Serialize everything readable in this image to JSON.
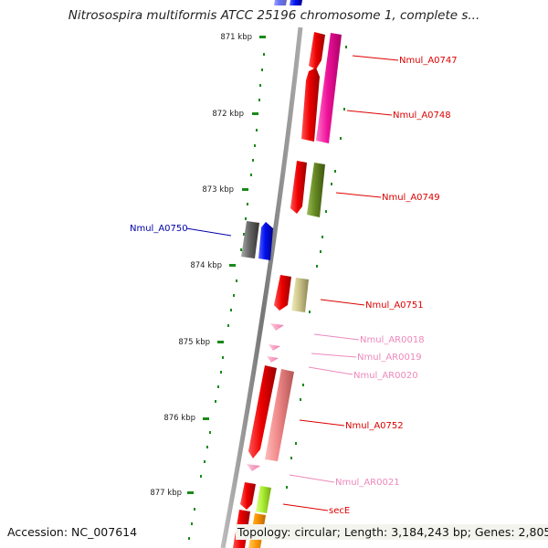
{
  "title": "Nitrosospira multiformis ATCC 25196 chromosome 1, complete s...",
  "ruler_ticks": [
    "871 kbp",
    "872 kbp",
    "873 kbp",
    "874 kbp",
    "875 kbp",
    "876 kbp",
    "877 kbp"
  ],
  "genes": [
    {
      "label": "Nmul_A0747",
      "color": "#dd0000"
    },
    {
      "label": "Nmul_A0748",
      "color": "#dd0000"
    },
    {
      "label": "Nmul_A0749",
      "color": "#dd0000"
    },
    {
      "label": "Nmul_A0750",
      "color": "#0000aa"
    },
    {
      "label": "Nmul_A0751",
      "color": "#dd0000"
    },
    {
      "label": "Nmul_AR0018",
      "color": "#ee88bb"
    },
    {
      "label": "Nmul_AR0019",
      "color": "#ee88bb"
    },
    {
      "label": "Nmul_AR0020",
      "color": "#ee88bb"
    },
    {
      "label": "Nmul_A0752",
      "color": "#dd0000"
    },
    {
      "label": "Nmul_AR0021",
      "color": "#ee88bb"
    },
    {
      "label": "secE",
      "color": "#dd0000"
    }
  ],
  "footer": {
    "accession": "Accession: NC_007614",
    "topology": "Topology: circular; Length: 3,184,243 bp; Genes: 2,805"
  }
}
